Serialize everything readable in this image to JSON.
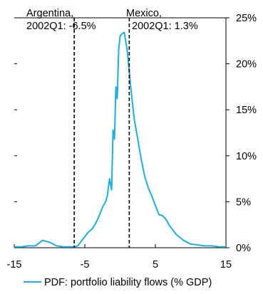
{
  "chart_data": {
    "type": "line",
    "xlim": [
      -15,
      15
    ],
    "ylim": [
      0,
      25
    ],
    "x_ticks": [
      -15,
      -5,
      5,
      15
    ],
    "x_tick_labels": [
      "-15",
      "-5",
      "5",
      "15"
    ],
    "y_ticks": [
      0,
      5,
      10,
      15,
      20,
      25
    ],
    "y_tick_labels": [
      "0%",
      "5%",
      "10%",
      "15%",
      "20%",
      "25%"
    ],
    "y_axis_side": "right",
    "grid": false,
    "legend": {
      "placement": "bottom-center",
      "label": "PDF: portfolio liability flows (% GDP)"
    },
    "series": [
      {
        "name": "PDF: portfolio liability flows (% GDP)",
        "color": "#1AB0E0",
        "x": [
          -15,
          -14,
          -13,
          -12,
          -11,
          -10,
          -9,
          -8,
          -7,
          -6.5,
          -6,
          -5.5,
          -5,
          -4.5,
          -4,
          -3.5,
          -3,
          -2.5,
          -2,
          -1.8,
          -1.5,
          -1.2,
          -1,
          -0.8,
          -0.6,
          -0.4,
          -0.2,
          0,
          0.3,
          0.6,
          1,
          1.5,
          2,
          2.5,
          3,
          3.5,
          4,
          4.5,
          5,
          5.5,
          6,
          6.5,
          7,
          7.5,
          8,
          9,
          10,
          11,
          12,
          13,
          14,
          15
        ],
        "y": [
          0.1,
          0.1,
          0.2,
          0.2,
          0.8,
          0.6,
          0.2,
          0.1,
          0.1,
          0.1,
          0.2,
          0.7,
          1.2,
          1.7,
          2,
          2.6,
          3.4,
          4.4,
          5.1,
          5.7,
          7.5,
          6.3,
          12.8,
          11.8,
          17.5,
          16.2,
          21.5,
          23.0,
          23.3,
          23.4,
          21.5,
          17.5,
          14.0,
          11.8,
          9.6,
          7.7,
          6.5,
          5.6,
          4.6,
          3.6,
          3.5,
          3.1,
          2.4,
          1.9,
          1.4,
          0.8,
          0.4,
          0.3,
          0.2,
          0.2,
          0.1,
          0.1
        ]
      }
    ],
    "annotations": [
      {
        "x": -6.5,
        "line": "dashed",
        "label_line1": "Argentina,",
        "label_line2": "2002Q1: -6.5%"
      },
      {
        "x": 1.3,
        "line": "dashed",
        "label_line1": "Mexico,",
        "label_line2": "2002Q1: 1.3%"
      }
    ]
  }
}
